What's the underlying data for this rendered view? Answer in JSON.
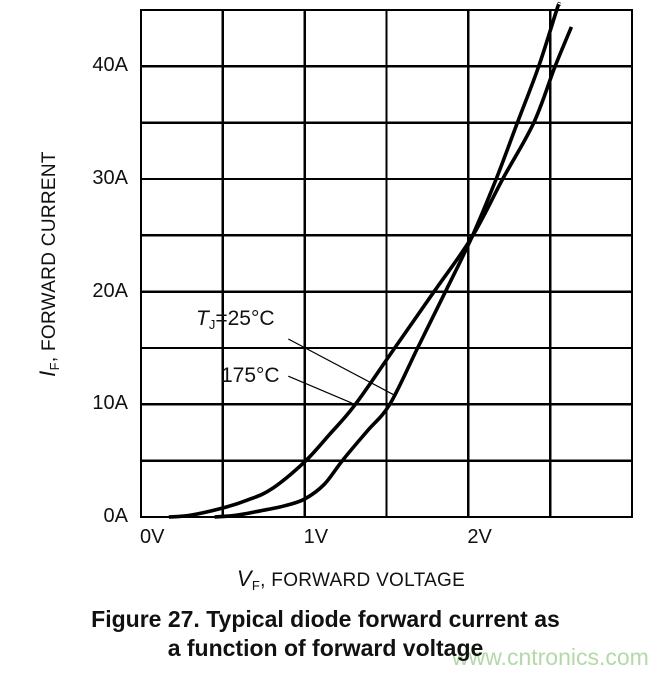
{
  "chart_data": {
    "type": "line",
    "title": "",
    "xlabel": {
      "symbol": "V",
      "subscript": "F",
      "rest": ", FORWARD VOLTAGE"
    },
    "ylabel": {
      "symbol": "I",
      "subscript": "F",
      "rest": ", FORWARD CURRENT"
    },
    "xlim": [
      0,
      3
    ],
    "ylim": [
      0,
      45
    ],
    "x_grid_step": 0.5,
    "y_grid_step": 5,
    "grid": true,
    "line_color": "#000000",
    "xticks": [
      {
        "value": 0,
        "label": "0V"
      },
      {
        "value": 1,
        "label": "1V"
      },
      {
        "value": 2,
        "label": "2V"
      }
    ],
    "yticks": [
      {
        "value": 0,
        "label": "0A"
      },
      {
        "value": 10,
        "label": "10A"
      },
      {
        "value": 20,
        "label": "20A"
      },
      {
        "value": 30,
        "label": "30A"
      },
      {
        "value": 40,
        "label": "40A"
      }
    ],
    "series": [
      {
        "name": "TJ=25C",
        "label_symbol": "T",
        "label_subscript": "J",
        "label_rest": "=25°C",
        "color": "#000000",
        "points": [
          [
            0.45,
            0
          ],
          [
            0.58,
            0.15
          ],
          [
            0.73,
            0.55
          ],
          [
            0.88,
            1.0
          ],
          [
            1.0,
            1.6
          ],
          [
            1.12,
            2.9
          ],
          [
            1.23,
            5.0
          ],
          [
            1.38,
            7.6
          ],
          [
            1.52,
            10.0
          ],
          [
            1.69,
            15.0
          ],
          [
            1.86,
            20.0
          ],
          [
            2.02,
            24.8
          ],
          [
            2.17,
            30.0
          ],
          [
            2.3,
            35.0
          ],
          [
            2.43,
            40.0
          ],
          [
            2.54,
            45.0
          ],
          [
            2.555,
            45.5
          ]
        ]
      },
      {
        "name": "175C",
        "label_symbol": "",
        "label_subscript": "",
        "label_rest": "175°C",
        "color": "#000000",
        "points": [
          [
            0.17,
            0
          ],
          [
            0.3,
            0.15
          ],
          [
            0.5,
            0.8
          ],
          [
            0.65,
            1.5
          ],
          [
            0.8,
            2.5
          ],
          [
            1.0,
            4.9
          ],
          [
            1.15,
            7.3
          ],
          [
            1.31,
            10.0
          ],
          [
            1.55,
            15.0
          ],
          [
            1.79,
            20.0
          ],
          [
            2.02,
            24.8
          ],
          [
            2.21,
            30.0
          ],
          [
            2.4,
            35.0
          ],
          [
            2.53,
            40.0
          ],
          [
            2.63,
            43.5
          ]
        ]
      }
    ],
    "leader_lines": [
      {
        "series": "TJ=25C",
        "from": [
          0.9,
          15.8
        ],
        "to": [
          1.55,
          10.8
        ]
      },
      {
        "series": "175C",
        "from": [
          0.9,
          12.5
        ],
        "to": [
          1.29,
          10.1
        ]
      }
    ]
  },
  "caption": {
    "line1": "Figure 27. Typical diode forward current as",
    "line2": "a function of forward voltage"
  },
  "watermark": {
    "text": "www.cntronics.com",
    "color": "#b3d9a8"
  }
}
